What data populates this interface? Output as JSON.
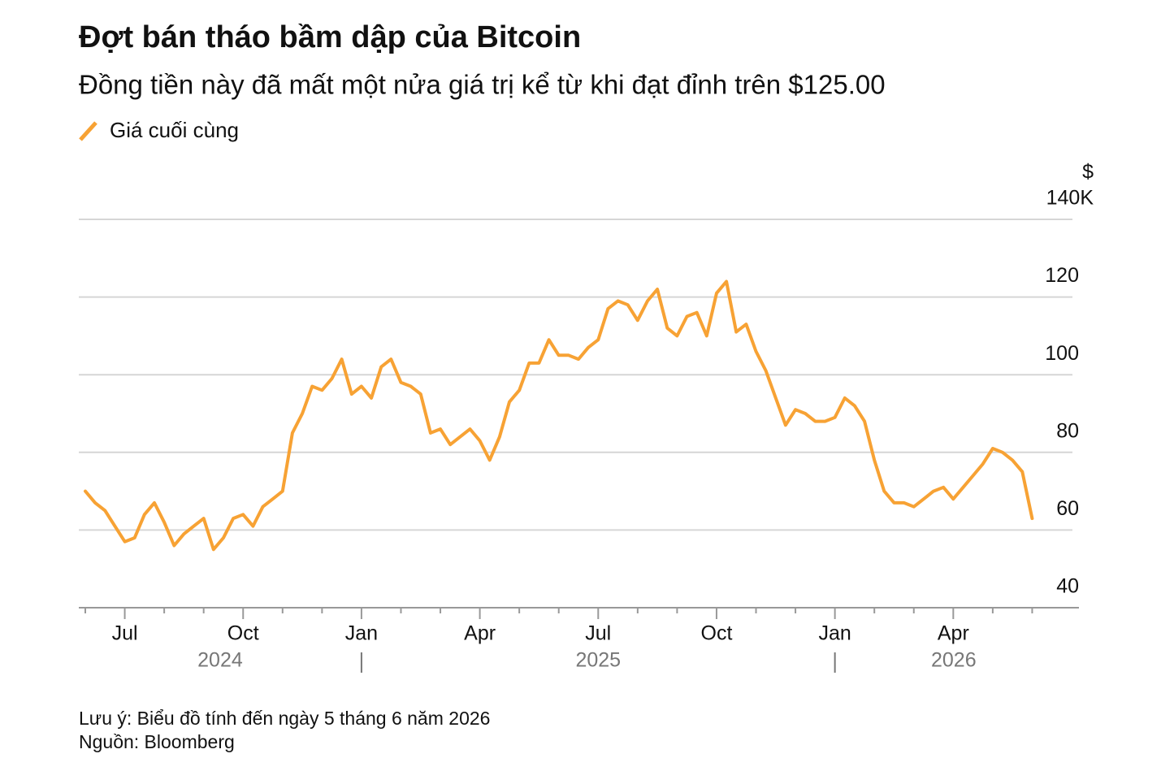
{
  "chart_data": {
    "type": "line",
    "title": "Đợt bán tháo bầm dập của Bitcoin",
    "subtitle": "Đồng tiền này đã mất một nửa giá trị kể từ khi đạt đỉnh trên $125.00",
    "y_unit": "$",
    "categories": [
      null,
      null,
      null,
      null,
      "Jul",
      null,
      null,
      null,
      null,
      null,
      null,
      null,
      null,
      null,
      null,
      null,
      "Oct",
      null,
      null,
      null,
      null,
      null,
      null,
      null,
      null,
      null,
      null,
      null,
      "Jan",
      null,
      null,
      null,
      null,
      null,
      null,
      null,
      null,
      null,
      null,
      null,
      "Apr",
      null,
      null,
      null,
      null,
      null,
      null,
      null,
      null,
      null,
      null,
      null,
      "Jul",
      null,
      null,
      null,
      null,
      null,
      null,
      null,
      null,
      null,
      null,
      null,
      "Oct",
      null,
      null,
      null,
      null,
      null,
      null,
      null,
      null,
      null,
      null,
      null,
      "Jan",
      null,
      null,
      null,
      null,
      null,
      null,
      null,
      null,
      null,
      null,
      null,
      "Apr",
      null,
      null,
      null,
      null,
      null,
      null,
      null,
      null
    ],
    "years": [
      "2024",
      "2025",
      "2026"
    ],
    "series": [
      {
        "name": "Giá cuối cùng",
        "color": "#f7a234",
        "values": [
          70,
          67,
          65,
          61,
          57,
          58,
          64,
          67,
          62,
          56,
          59,
          61,
          63,
          55,
          58,
          63,
          64,
          61,
          66,
          68,
          70,
          85,
          90,
          97,
          96,
          99,
          104,
          95,
          97,
          94,
          102,
          104,
          98,
          97,
          95,
          85,
          86,
          82,
          84,
          86,
          83,
          78,
          84,
          93,
          96,
          103,
          103,
          109,
          105,
          105,
          104,
          107,
          109,
          117,
          119,
          118,
          114,
          119,
          122,
          112,
          110,
          115,
          116,
          110,
          121,
          124,
          111,
          113,
          106,
          101,
          94,
          87,
          91,
          90,
          88,
          88,
          89,
          94,
          92,
          88,
          78,
          70,
          67,
          67,
          66,
          68,
          70,
          71,
          68,
          71,
          74,
          77,
          81,
          80,
          78,
          75,
          63
        ]
      }
    ],
    "ylim": [
      40,
      140
    ],
    "yticks": [
      40,
      60,
      80,
      100,
      120,
      {
        "value": 140,
        "label": "140K"
      }
    ],
    "grid": true,
    "notes": [
      "Lưu ý: Biểu đồ tính đến ngày 5 tháng 6 năm 2026",
      "Nguồn: Bloomberg"
    ]
  }
}
